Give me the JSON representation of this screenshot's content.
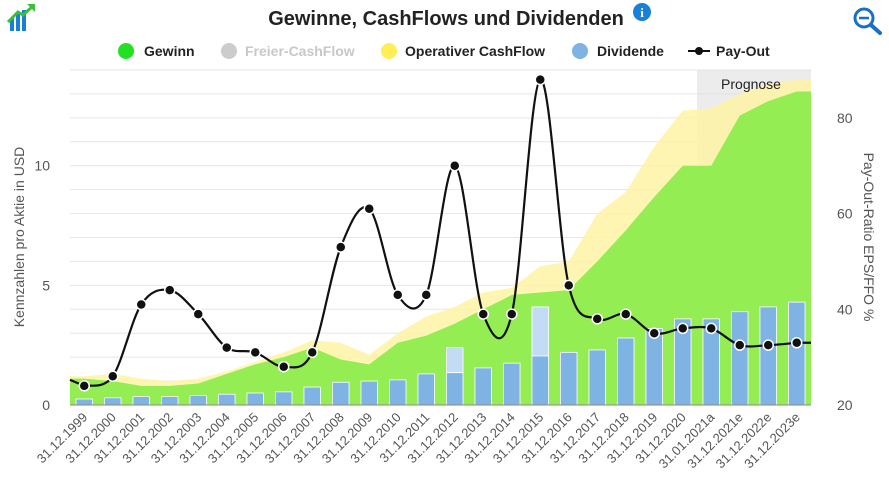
{
  "header": {
    "title": "Gewinne, CashFlows und Dividenden",
    "info_icon": "info-icon",
    "left_icon": "trend-chart-icon",
    "right_icon": "zoom-icon"
  },
  "colors": {
    "gewinn": "#8fec4f",
    "gewinn_legend": "#22e022",
    "operativer_cashflow": "#fff3a6",
    "operativer_cashflow_legend": "#ffee55",
    "freier_cashflow_legend": "#cccccc",
    "dividende": "#7fb3e4",
    "dividende_extra": "#c3dcf5",
    "payout": "#111111",
    "prognose_band": "#dddddd",
    "icon_blue": "#1a7fd6"
  },
  "chart_data": {
    "type": "bar",
    "title": "Gewinne, CashFlows und Dividenden",
    "categories": [
      "31.12.1999",
      "31.12.2000",
      "31.12.2001",
      "31.12.2002",
      "31.12.2003",
      "31.12.2004",
      "31.12.2005",
      "31.12.2006",
      "31.12.2007",
      "31.12.2008",
      "31.12.2009",
      "31.12.2010",
      "31.12.2011",
      "31.12.2012",
      "31.12.2013",
      "31.12.2014",
      "31.12.2015",
      "31.12.2016",
      "31.12.2017",
      "31.12.2018",
      "31.12.2019",
      "31.12.2020",
      "31.01.2021a",
      "31.12.2021e",
      "31.12.2022e",
      "31.12.2023e"
    ],
    "ylabel": "Kennzahlen pro Aktie in USD",
    "y2label": "Pay-Out-Ratio EPS/FFO %",
    "ylim": [
      0,
      14
    ],
    "yticks": [
      "0",
      "5",
      "10"
    ],
    "y2lim": [
      20,
      90
    ],
    "y2ticks": [
      "20",
      "40",
      "60",
      "80"
    ],
    "forecast_label": "Prognose",
    "forecast_from_index": 22,
    "grid": true,
    "legend_position": "top",
    "legend": [
      {
        "label": "Gewinn",
        "enabled": true
      },
      {
        "label": "Freier-CashFlow",
        "enabled": false
      },
      {
        "label": "Operativer CashFlow",
        "enabled": true
      },
      {
        "label": "Dividende",
        "enabled": true
      },
      {
        "label": "Pay-Out",
        "enabled": true
      }
    ],
    "series": [
      {
        "name": "Gewinn",
        "type": "area",
        "values": [
          1.1,
          1.0,
          0.8,
          0.8,
          0.9,
          1.3,
          1.7,
          2.0,
          2.4,
          1.9,
          1.7,
          2.6,
          2.9,
          3.4,
          4.0,
          4.6,
          4.7,
          4.8,
          6.0,
          7.3,
          8.7,
          10.0,
          10.0,
          12.1,
          12.7,
          13.1
        ]
      },
      {
        "name": "Operativer CashFlow",
        "type": "area",
        "values": [
          1.2,
          1.3,
          1.1,
          1.0,
          1.1,
          1.4,
          1.8,
          2.2,
          2.7,
          2.6,
          2.1,
          3.0,
          3.7,
          4.1,
          4.7,
          4.9,
          5.8,
          6.0,
          8.0,
          8.9,
          10.8,
          12.3,
          12.4,
          13.0,
          13.4,
          13.6
        ]
      },
      {
        "name": "Dividende",
        "type": "bar",
        "values": [
          0.25,
          0.3,
          0.35,
          0.35,
          0.4,
          0.45,
          0.5,
          0.55,
          0.75,
          0.95,
          1.0,
          1.05,
          1.3,
          1.35,
          1.55,
          1.75,
          2.05,
          2.2,
          2.3,
          2.8,
          3.2,
          3.6,
          3.6,
          3.9,
          4.1,
          4.3
        ],
        "extra": [
          0,
          0,
          0,
          0,
          0,
          0,
          0,
          0,
          0,
          0,
          0,
          0,
          0,
          1.05,
          0,
          0,
          2.05,
          0,
          0,
          0,
          0,
          0,
          0,
          0,
          0,
          0
        ]
      },
      {
        "name": "Pay-Out",
        "type": "line",
        "axis": "right",
        "values": [
          24,
          26,
          41,
          44,
          39,
          32,
          31,
          28,
          31,
          53,
          61,
          43,
          43,
          70,
          39,
          39,
          88,
          45,
          38,
          39,
          35,
          36,
          36,
          32.5,
          32.5,
          33
        ]
      }
    ]
  }
}
